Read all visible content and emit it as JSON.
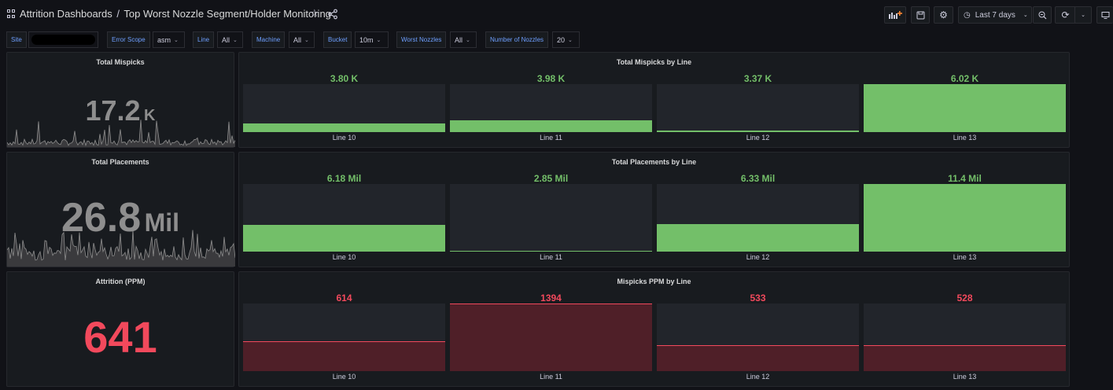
{
  "header": {
    "breadcrumb_root": "Attrition Dashboards",
    "breadcrumb_sep": "/",
    "breadcrumb_title": "Top Worst Nozzle Segment/Holder Monitoring",
    "time_range": "Last 7 days"
  },
  "variables": [
    {
      "label": "Site",
      "value": ""
    },
    {
      "label": "Error Scope",
      "value": "asm"
    },
    {
      "label": "Line",
      "value": "All"
    },
    {
      "label": "Machine",
      "value": "All"
    },
    {
      "label": "Bucket",
      "value": "10m"
    },
    {
      "label": "Worst Nozzles",
      "value": "All"
    },
    {
      "label": "Number of Nozzles",
      "value": "20"
    }
  ],
  "colors": {
    "green": "#73bf69",
    "red": "#f2495c",
    "gray_stat": "#8e8e8e"
  },
  "stats": {
    "mispicks": {
      "title": "Total Mispicks",
      "value": "17.2",
      "unit": "K"
    },
    "placements": {
      "title": "Total Placements",
      "value": "26.8",
      "unit": "Mil"
    },
    "attrition": {
      "title": "Attrition (PPM)",
      "value": "641"
    }
  },
  "bar_panels": [
    {
      "title": "Total Mispicks by Line",
      "color": "green",
      "items": [
        {
          "label": "Line 10",
          "display": "3.80 K",
          "value": 3800
        },
        {
          "label": "Line 11",
          "display": "3.98 K",
          "value": 3980
        },
        {
          "label": "Line 12",
          "display": "3.37 K",
          "value": 3370
        },
        {
          "label": "Line 13",
          "display": "6.02 K",
          "value": 6020
        }
      ],
      "min": 3300,
      "max": 6020
    },
    {
      "title": "Total Placements by Line",
      "color": "green",
      "items": [
        {
          "label": "Line 10",
          "display": "6.18 Mil",
          "value": 6.18
        },
        {
          "label": "Line 11",
          "display": "2.85 Mil",
          "value": 2.85
        },
        {
          "label": "Line 12",
          "display": "6.33 Mil",
          "value": 6.33
        },
        {
          "label": "Line 13",
          "display": "11.4 Mil",
          "value": 11.4
        }
      ],
      "min": 2.8,
      "max": 11.4
    },
    {
      "title": "Mispicks PPM by Line",
      "color": "red",
      "items": [
        {
          "label": "Line 10",
          "display": "614",
          "value": 614
        },
        {
          "label": "Line 11",
          "display": "1394",
          "value": 1394
        },
        {
          "label": "Line 12",
          "display": "533",
          "value": 533
        },
        {
          "label": "Line 13",
          "display": "528",
          "value": 528
        }
      ],
      "min": 0,
      "max": 1394
    }
  ]
}
